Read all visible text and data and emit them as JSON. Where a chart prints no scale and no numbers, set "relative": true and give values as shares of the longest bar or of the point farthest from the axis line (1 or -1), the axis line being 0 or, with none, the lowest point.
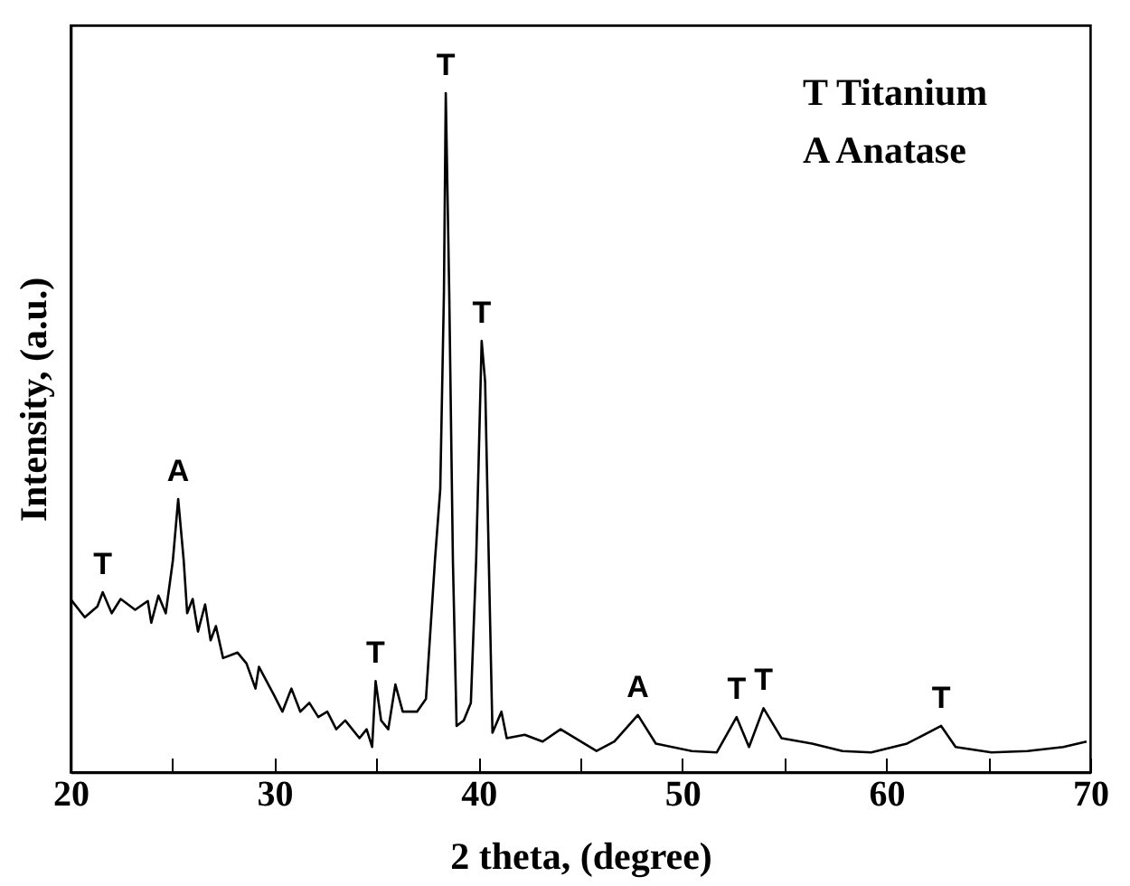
{
  "chart_data": {
    "type": "line",
    "relative": true,
    "xlabel": "2 theta, (degree)",
    "ylabel": "Intensity, (a.u.)",
    "xlim": [
      20,
      70
    ],
    "xticks": [
      20,
      {
        "value": 25,
        "label": null
      },
      30,
      {
        "value": 35,
        "label": null
      },
      40,
      {
        "value": 45,
        "label": null
      },
      50,
      {
        "value": 55,
        "label": null
      },
      60,
      {
        "value": 65,
        "label": null
      },
      70
    ],
    "grid": false,
    "series": [
      {
        "color": "#000000",
        "x": [
          20.0,
          20.7,
          21.32,
          21.58,
          22.02,
          22.46,
          23.17,
          23.79,
          23.96,
          24.31,
          24.67,
          25.02,
          25.28,
          25.55,
          25.72,
          25.99,
          26.25,
          26.6,
          26.87,
          27.13,
          27.48,
          28.19,
          28.63,
          29.07,
          29.24,
          29.95,
          30.39,
          30.83,
          31.27,
          31.71,
          32.15,
          32.59,
          33.03,
          33.47,
          34.17,
          34.52,
          34.79,
          34.96,
          35.23,
          35.58,
          35.93,
          36.29,
          36.99,
          37.43,
          37.87,
          38.13,
          38.31,
          38.4,
          38.57,
          38.75,
          38.93,
          39.28,
          39.63,
          39.89,
          40.16,
          40.33,
          40.51,
          40.69,
          41.13,
          41.39,
          42.27,
          43.15,
          44.03,
          45.79,
          46.67,
          47.82,
          48.7,
          50.46,
          51.69,
          52.66,
          53.27,
          53.98,
          54.86,
          56.36,
          57.85,
          59.26,
          61.02,
          62.69,
          63.4,
          65.16,
          66.92,
          68.68,
          69.82
        ],
        "values": [
          0.255,
          0.228,
          0.244,
          0.265,
          0.234,
          0.255,
          0.239,
          0.252,
          0.22,
          0.26,
          0.234,
          0.312,
          0.402,
          0.312,
          0.234,
          0.255,
          0.207,
          0.247,
          0.194,
          0.215,
          0.168,
          0.176,
          0.16,
          0.123,
          0.155,
          0.115,
          0.089,
          0.123,
          0.089,
          0.102,
          0.081,
          0.089,
          0.063,
          0.076,
          0.05,
          0.063,
          0.037,
          0.134,
          0.076,
          0.063,
          0.129,
          0.089,
          0.089,
          0.108,
          0.312,
          0.417,
          0.706,
          1.0,
          0.706,
          0.312,
          0.068,
          0.076,
          0.102,
          0.312,
          0.635,
          0.575,
          0.312,
          0.058,
          0.089,
          0.05,
          0.055,
          0.045,
          0.063,
          0.031,
          0.045,
          0.084,
          0.042,
          0.031,
          0.029,
          0.081,
          0.037,
          0.094,
          0.05,
          0.042,
          0.031,
          0.029,
          0.042,
          0.068,
          0.037,
          0.029,
          0.031,
          0.037,
          0.045
        ]
      }
    ],
    "annotations": [
      {
        "text": "T",
        "x": 21.58,
        "y": 0.265
      },
      {
        "text": "A",
        "x": 25.28,
        "y": 0.402
      },
      {
        "text": "T",
        "x": 34.96,
        "y": 0.134
      },
      {
        "text": "T",
        "x": 38.4,
        "y": 1.0
      },
      {
        "text": "T",
        "x": 40.16,
        "y": 0.635
      },
      {
        "text": "A",
        "x": 47.82,
        "y": 0.084
      },
      {
        "text": "T",
        "x": 52.66,
        "y": 0.081
      },
      {
        "text": "T",
        "x": 53.98,
        "y": 0.094
      },
      {
        "text": "T",
        "x": 62.69,
        "y": 0.068
      },
      "T   Titanium",
      "A   Anatase"
    ]
  }
}
